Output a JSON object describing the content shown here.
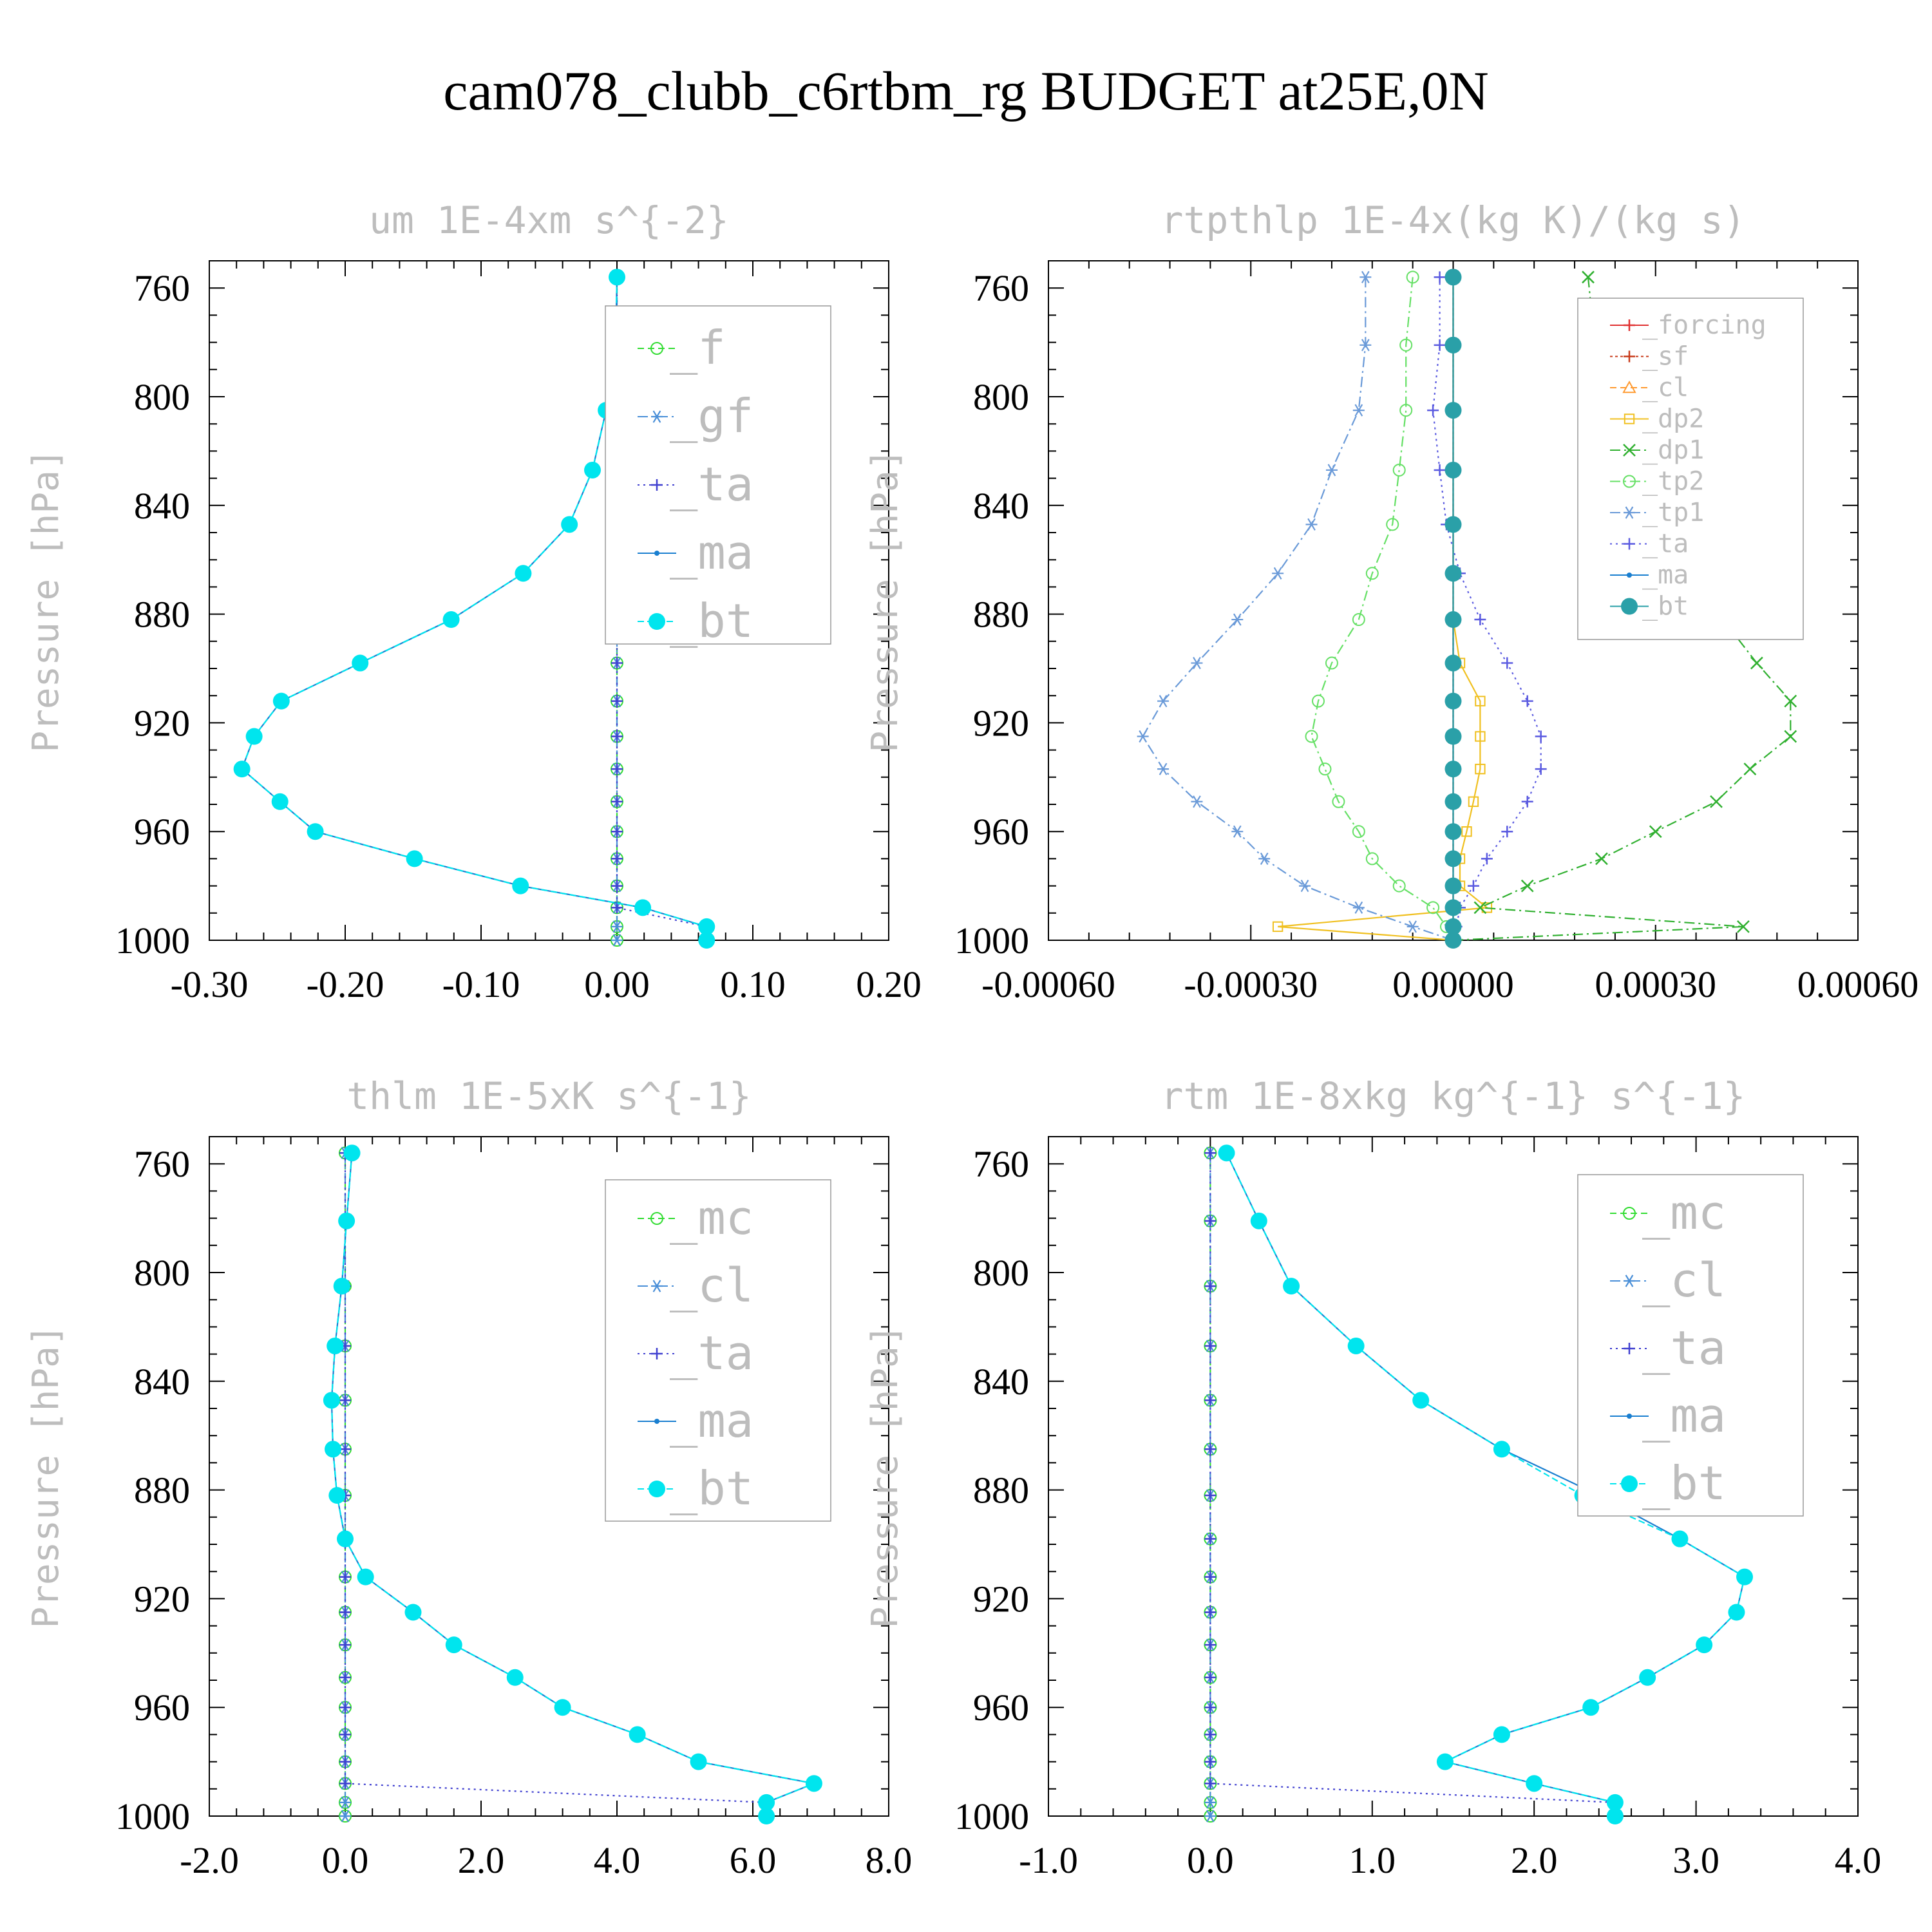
{
  "figure": {
    "title": "cam078_clubb_c6rtbm_rg  BUDGET at25E,0N"
  },
  "colors": {
    "frame": "#000000",
    "faint_text": "#bdbdbd",
    "tick_text": "#000000"
  },
  "chart_data": [
    {
      "type": "line",
      "title": "um  1E-4xm s^{-2}",
      "ylabel": "Pressure [hPa]",
      "ylim": [
        750,
        1000
      ],
      "y_reversed": true,
      "yticks": [
        760,
        800,
        840,
        880,
        920,
        960,
        1000
      ],
      "ytick_labels": [
        "760",
        "800",
        "840",
        "880",
        "920",
        "960",
        "1000"
      ],
      "xlim": [
        -0.3,
        0.2
      ],
      "xticks": [
        -0.3,
        -0.2,
        -0.1,
        0.0,
        0.1,
        0.2
      ],
      "xtick_labels": [
        "-0.30",
        "-0.20",
        "-0.10",
        "0.00",
        "0.10",
        "0.20"
      ],
      "legend_font": 72,
      "legend_position": "top-right",
      "pressure": [
        756,
        781,
        805,
        827,
        847,
        865,
        882,
        898,
        912,
        925,
        937,
        949,
        960,
        970,
        980,
        988,
        995,
        1000
      ],
      "series": [
        {
          "name": "_f",
          "color": "#33dd33",
          "marker": "circle",
          "dash": "10,6",
          "values": [
            0,
            0,
            0,
            0,
            0,
            0,
            0,
            0,
            0,
            0,
            0,
            0,
            0,
            0,
            0,
            0,
            0,
            0
          ]
        },
        {
          "name": "_gf",
          "color": "#4a8fd8",
          "marker": "asterisk",
          "dash": "16,6,3,6",
          "values": [
            0,
            0,
            0,
            0,
            0,
            0,
            0,
            0,
            0,
            0,
            0,
            0,
            0,
            0,
            0,
            0,
            0,
            0
          ]
        },
        {
          "name": "_ta",
          "color": "#4040d0",
          "marker": "plus",
          "dash": "3,6",
          "values": [
            0,
            0,
            0,
            0,
            0,
            0,
            0,
            0,
            0,
            0,
            0,
            0,
            0,
            0,
            0,
            0,
            0.066,
            0.066
          ]
        },
        {
          "name": "_ma",
          "color": "#1a7fd0",
          "marker": "dot",
          "dash": "",
          "values": [
            0,
            -0.001,
            -0.008,
            -0.018,
            -0.035,
            -0.069,
            -0.122,
            -0.189,
            -0.247,
            -0.267,
            -0.276,
            -0.248,
            -0.222,
            -0.149,
            -0.071,
            0.019,
            0.066,
            0.066
          ]
        },
        {
          "name": "_bt",
          "color": "#00e5ee",
          "marker": "bigdot",
          "dash": "10,5",
          "values": [
            0,
            -0.001,
            -0.008,
            -0.018,
            -0.035,
            -0.069,
            -0.122,
            -0.189,
            -0.247,
            -0.267,
            -0.276,
            -0.248,
            -0.222,
            -0.149,
            -0.071,
            0.019,
            0.066,
            0.066
          ]
        }
      ]
    },
    {
      "type": "line",
      "title": "rtpthlp  1E-4x(kg K)/(kg s)",
      "ylabel": "Pressure [hPa]",
      "ylim": [
        750,
        1000
      ],
      "y_reversed": true,
      "yticks": [
        760,
        800,
        840,
        880,
        920,
        960,
        1000
      ],
      "ytick_labels": [
        "760",
        "800",
        "840",
        "880",
        "920",
        "960",
        "1000"
      ],
      "xlim": [
        -0.0006,
        0.0006
      ],
      "xticks": [
        -0.0006,
        -0.0003,
        0.0,
        0.0003,
        0.0006
      ],
      "xtick_labels": [
        "-0.00060",
        "-0.00030",
        "0.00000",
        "0.00030",
        "0.00060"
      ],
      "legend_font": 40,
      "legend_position": "top-right",
      "pressure": [
        756,
        781,
        805,
        827,
        847,
        865,
        882,
        898,
        912,
        925,
        937,
        949,
        960,
        970,
        980,
        988,
        995,
        1000
      ],
      "series": [
        {
          "name": "_forcing",
          "color": "#e03030",
          "marker": "plus",
          "dash": "",
          "values": [
            0,
            0,
            0,
            0,
            0,
            0,
            0,
            0,
            0,
            0,
            0,
            0,
            0,
            0,
            0,
            0,
            0,
            0
          ]
        },
        {
          "name": "_sf",
          "color": "#c83a1a",
          "marker": "plus",
          "dash": "4,4",
          "values": [
            0,
            0,
            0,
            0,
            0,
            0,
            0,
            0,
            0,
            0,
            0,
            0,
            0,
            0,
            0,
            0,
            0,
            0
          ]
        },
        {
          "name": "_cl",
          "color": "#ff9a30",
          "marker": "triangle",
          "dash": "10,6",
          "values": [
            0,
            0,
            0,
            0,
            0,
            0,
            0,
            0,
            0,
            0,
            0,
            0,
            0,
            0,
            0,
            0,
            0,
            0
          ]
        },
        {
          "name": "_dp2",
          "color": "#f0c020",
          "marker": "square",
          "dash": "",
          "values": [
            0,
            0,
            0,
            0,
            0,
            0,
            0,
            1e-05,
            4e-05,
            4e-05,
            4e-05,
            3e-05,
            2e-05,
            1e-05,
            1e-05,
            5e-05,
            -0.00026,
            0
          ]
        },
        {
          "name": "_dp1",
          "color": "#30b030",
          "marker": "cross",
          "dash": "16,6,3,6",
          "values": [
            0.0002,
            0.00021,
            0.00023,
            0.00027,
            0.00031,
            0.00036,
            0.0004,
            0.00045,
            0.0005,
            0.0005,
            0.00044,
            0.00039,
            0.0003,
            0.00022,
            0.00011,
            4e-05,
            0.00043,
            0
          ]
        },
        {
          "name": "_tp2",
          "color": "#66e066",
          "marker": "circle",
          "dash": "16,6,3,6",
          "values": [
            -6e-05,
            -7e-05,
            -7e-05,
            -8e-05,
            -9e-05,
            -0.00012,
            -0.00014,
            -0.00018,
            -0.0002,
            -0.00021,
            -0.00019,
            -0.00017,
            -0.00014,
            -0.00012,
            -8e-05,
            -3e-05,
            -1e-05,
            0
          ]
        },
        {
          "name": "_tp1",
          "color": "#6a9ad8",
          "marker": "asterisk",
          "dash": "16,6,3,6",
          "values": [
            -0.00013,
            -0.00013,
            -0.00014,
            -0.00018,
            -0.00021,
            -0.00026,
            -0.00032,
            -0.00038,
            -0.00043,
            -0.00046,
            -0.00043,
            -0.00038,
            -0.00032,
            -0.00028,
            -0.00022,
            -0.00014,
            -6e-05,
            0
          ]
        },
        {
          "name": "_ta",
          "color": "#5a5ae0",
          "marker": "plus",
          "dash": "3,6",
          "values": [
            -2e-05,
            -2e-05,
            -3e-05,
            -2e-05,
            -1e-05,
            1e-05,
            4e-05,
            8e-05,
            0.00011,
            0.00013,
            0.00013,
            0.00011,
            8e-05,
            5e-05,
            3e-05,
            1e-05,
            5e-06,
            0
          ]
        },
        {
          "name": "_ma",
          "color": "#1a7fd0",
          "marker": "dot",
          "dash": "",
          "values": [
            0,
            0,
            0,
            0,
            0,
            0,
            0,
            0,
            0,
            0,
            0,
            0,
            0,
            0,
            0,
            0,
            0,
            0
          ]
        },
        {
          "name": "_bt",
          "color": "#2aa0a8",
          "marker": "bigdot",
          "dash": "",
          "values": [
            0,
            0,
            0,
            0,
            0,
            0,
            0,
            0,
            0,
            0,
            0,
            0,
            0,
            0,
            0,
            0,
            0,
            0
          ]
        }
      ]
    },
    {
      "type": "line",
      "title": "thlm  1E-5xK s^{-1}",
      "ylabel": "Pressure [hPa]",
      "ylim": [
        750,
        1000
      ],
      "y_reversed": true,
      "yticks": [
        760,
        800,
        840,
        880,
        920,
        960,
        1000
      ],
      "ytick_labels": [
        "760",
        "800",
        "840",
        "880",
        "920",
        "960",
        "1000"
      ],
      "xlim": [
        -2.0,
        8.0
      ],
      "xticks": [
        -2.0,
        0.0,
        2.0,
        4.0,
        6.0,
        8.0
      ],
      "xtick_labels": [
        "-2.0",
        "0.0",
        "2.0",
        "4.0",
        "6.0",
        "8.0"
      ],
      "legend_font": 72,
      "legend_position": "top-right",
      "pressure": [
        756,
        781,
        805,
        827,
        847,
        865,
        882,
        898,
        912,
        925,
        937,
        949,
        960,
        970,
        980,
        988,
        995,
        1000
      ],
      "series": [
        {
          "name": "_mc",
          "color": "#33dd33",
          "marker": "circle",
          "dash": "10,6",
          "values": [
            0,
            0,
            0,
            0,
            0,
            0,
            0,
            0,
            0,
            0,
            0,
            0,
            0,
            0,
            0,
            0,
            0,
            0
          ]
        },
        {
          "name": "_cl",
          "color": "#4a8fd8",
          "marker": "asterisk",
          "dash": "16,6,3,6",
          "values": [
            0,
            0,
            0,
            0,
            0,
            0,
            0,
            0,
            0,
            0,
            0,
            0,
            0,
            0,
            0,
            0,
            0,
            0
          ]
        },
        {
          "name": "_ta",
          "color": "#4040d0",
          "marker": "plus",
          "dash": "3,6",
          "values": [
            0,
            0,
            0,
            0,
            0,
            0,
            0,
            0,
            0,
            0,
            0,
            0,
            0,
            0,
            0,
            0,
            6.2,
            6.2
          ]
        },
        {
          "name": "_ma",
          "color": "#1a7fd0",
          "marker": "dot",
          "dash": "",
          "values": [
            0.1,
            0.02,
            -0.05,
            -0.15,
            -0.2,
            -0.18,
            -0.12,
            0,
            0.3,
            1.0,
            1.6,
            2.5,
            3.2,
            4.3,
            5.2,
            6.9,
            6.2,
            6.2
          ]
        },
        {
          "name": "_bt",
          "color": "#00e5ee",
          "marker": "bigdot",
          "dash": "10,5",
          "values": [
            0.1,
            0.02,
            -0.05,
            -0.15,
            -0.2,
            -0.18,
            -0.12,
            0,
            0.3,
            1.0,
            1.6,
            2.5,
            3.2,
            4.3,
            5.2,
            6.9,
            6.2,
            6.2
          ]
        }
      ]
    },
    {
      "type": "line",
      "title": "rtm  1E-8xkg kg^{-1} s^{-1}",
      "ylabel": "Pressure [hPa]",
      "ylim": [
        750,
        1000
      ],
      "y_reversed": true,
      "yticks": [
        760,
        800,
        840,
        880,
        920,
        960,
        1000
      ],
      "ytick_labels": [
        "760",
        "800",
        "840",
        "880",
        "920",
        "960",
        "1000"
      ],
      "xlim": [
        -1.0,
        4.0
      ],
      "xticks": [
        -1.0,
        0.0,
        1.0,
        2.0,
        3.0,
        4.0
      ],
      "xtick_labels": [
        "-1.0",
        "0.0",
        "1.0",
        "2.0",
        "3.0",
        "4.0"
      ],
      "legend_font": 72,
      "legend_position": "top-right",
      "pressure": [
        756,
        781,
        805,
        827,
        847,
        865,
        882,
        898,
        912,
        925,
        937,
        949,
        960,
        970,
        980,
        988,
        995,
        1000
      ],
      "series": [
        {
          "name": "_mc",
          "color": "#33dd33",
          "marker": "circle",
          "dash": "10,6",
          "values": [
            0,
            0,
            0,
            0,
            0,
            0,
            0,
            0,
            0,
            0,
            0,
            0,
            0,
            0,
            0,
            0,
            0,
            0
          ]
        },
        {
          "name": "_cl",
          "color": "#4a8fd8",
          "marker": "asterisk",
          "dash": "16,6,3,6",
          "values": [
            0,
            0,
            0,
            0,
            0,
            0,
            0,
            0,
            0,
            0,
            0,
            0,
            0,
            0,
            0,
            0,
            0,
            0
          ]
        },
        {
          "name": "_ta",
          "color": "#4040d0",
          "marker": "plus",
          "dash": "3,6",
          "values": [
            0,
            0,
            0,
            0,
            0,
            0,
            0,
            0,
            0,
            0,
            0,
            0,
            0,
            0,
            0,
            0,
            2.5,
            2.5
          ]
        },
        {
          "name": "_ma",
          "color": "#1a7fd0",
          "marker": "dot",
          "dash": "",
          "values": [
            0.1,
            0.3,
            0.5,
            0.9,
            1.3,
            1.8,
            2.4,
            2.9,
            3.3,
            3.25,
            3.05,
            2.7,
            2.35,
            1.8,
            1.45,
            2.0,
            2.5,
            2.5
          ]
        },
        {
          "name": "_bt",
          "color": "#00e5ee",
          "marker": "bigdot",
          "dash": "10,5",
          "values": [
            0.1,
            0.3,
            0.5,
            0.9,
            1.3,
            1.8,
            2.3,
            2.9,
            3.3,
            3.25,
            3.05,
            2.7,
            2.35,
            1.8,
            1.45,
            2.0,
            2.5,
            2.5
          ]
        }
      ]
    }
  ]
}
